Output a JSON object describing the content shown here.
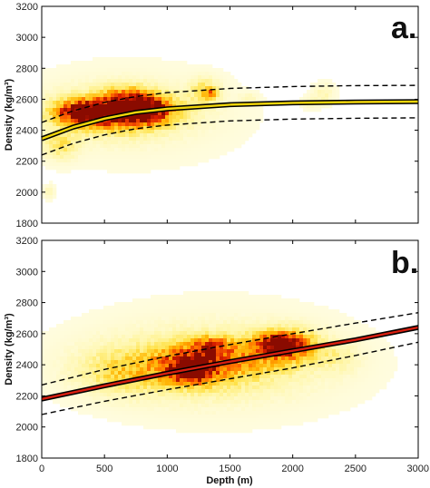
{
  "colors": {
    "background": "#ffffff",
    "frame": "#000000",
    "fit_a": "#f2d60a",
    "fit_b": "#d81f10",
    "bound": "#000000",
    "density_ramp": [
      "#fffde6",
      "#fff6a8",
      "#ffe24a",
      "#ffb000",
      "#ff6a00",
      "#d81e00",
      "#8a0b00"
    ]
  },
  "chart_data": [
    {
      "id": "a",
      "type": "heatmap",
      "panel_tag": "a.",
      "xlabel": "",
      "ylabel": "Density (kg/m³)",
      "xlim": [
        0,
        3000
      ],
      "ylim": [
        1800,
        3200
      ],
      "x_ticks": [],
      "y_ticks": [
        "1800",
        "2000",
        "2200",
        "2400",
        "2600",
        "2800",
        "3000",
        "3200"
      ],
      "grid": false,
      "series": [
        {
          "role": "fit",
          "color": "#f2d60a",
          "style": "solid",
          "points": [
            [
              0,
              2345
            ],
            [
              250,
              2420
            ],
            [
              500,
              2475
            ],
            [
              750,
              2515
            ],
            [
              1000,
              2538
            ],
            [
              1500,
              2565
            ],
            [
              2000,
              2577
            ],
            [
              2500,
              2582
            ],
            [
              3000,
              2585
            ]
          ]
        },
        {
          "role": "upper-bound",
          "style": "dashed",
          "points": [
            [
              0,
              2450
            ],
            [
              250,
              2525
            ],
            [
              500,
              2580
            ],
            [
              750,
              2618
            ],
            [
              1000,
              2643
            ],
            [
              1500,
              2670
            ],
            [
              2000,
              2682
            ],
            [
              2500,
              2688
            ],
            [
              3000,
              2690
            ]
          ]
        },
        {
          "role": "lower-bound",
          "style": "dashed",
          "points": [
            [
              0,
              2240
            ],
            [
              250,
              2315
            ],
            [
              500,
              2370
            ],
            [
              750,
              2410
            ],
            [
              1000,
              2433
            ],
            [
              1500,
              2460
            ],
            [
              2000,
              2472
            ],
            [
              2500,
              2477
            ],
            [
              3000,
              2480
            ]
          ]
        }
      ],
      "density_clusters": [
        {
          "x": 700,
          "y": 2500,
          "sx": 700,
          "sy": 250,
          "level": 0.06
        },
        {
          "x": 600,
          "y": 2510,
          "sx": 330,
          "sy": 95,
          "level": 0.42
        },
        {
          "x": 560,
          "y": 2520,
          "sx": 240,
          "sy": 60,
          "level": 0.7
        },
        {
          "x": 300,
          "y": 2510,
          "sx": 120,
          "sy": 45,
          "level": 0.62
        },
        {
          "x": 820,
          "y": 2530,
          "sx": 150,
          "sy": 55,
          "level": 0.72
        },
        {
          "x": 700,
          "y": 2600,
          "sx": 140,
          "sy": 60,
          "level": 0.38
        },
        {
          "x": 1300,
          "y": 2650,
          "sx": 80,
          "sy": 55,
          "level": 0.3
        },
        {
          "x": 1350,
          "y": 2635,
          "sx": 35,
          "sy": 20,
          "level": 0.45
        },
        {
          "x": 150,
          "y": 2300,
          "sx": 90,
          "sy": 60,
          "level": 0.25
        },
        {
          "x": 60,
          "y": 2000,
          "sx": 30,
          "sy": 30,
          "level": 0.12
        },
        {
          "x": 2250,
          "y": 2640,
          "sx": 60,
          "sy": 45,
          "level": 0.12
        },
        {
          "x": 1650,
          "y": 2610,
          "sx": 50,
          "sy": 20,
          "level": 0.1
        },
        {
          "x": 2150,
          "y": 2580,
          "sx": 60,
          "sy": 30,
          "level": 0.08
        }
      ]
    },
    {
      "id": "b",
      "type": "heatmap",
      "panel_tag": "b.",
      "xlabel": "Depth (m)",
      "ylabel": "Density (kg/m³)",
      "xlim": [
        0,
        3000
      ],
      "ylim": [
        1800,
        3200
      ],
      "x_ticks": [
        "0",
        "500",
        "1000",
        "1500",
        "2000",
        "2500",
        "3000"
      ],
      "y_ticks": [
        "1800",
        "2000",
        "2200",
        "2400",
        "2600",
        "2800",
        "3000",
        "3200"
      ],
      "grid": false,
      "series": [
        {
          "role": "fit",
          "color": "#d81f10",
          "style": "solid",
          "points": [
            [
              0,
              2180
            ],
            [
              500,
              2265
            ],
            [
              1000,
              2345
            ],
            [
              1500,
              2420
            ],
            [
              2000,
              2490
            ],
            [
              2500,
              2560
            ],
            [
              3000,
              2640
            ]
          ]
        },
        {
          "role": "upper-bound",
          "style": "dashed",
          "points": [
            [
              0,
              2270
            ],
            [
              500,
              2370
            ],
            [
              1000,
              2455
            ],
            [
              1500,
              2530
            ],
            [
              2000,
              2600
            ],
            [
              2500,
              2668
            ],
            [
              3000,
              2735
            ]
          ]
        },
        {
          "role": "lower-bound",
          "style": "dashed",
          "points": [
            [
              0,
              2080
            ],
            [
              500,
              2165
            ],
            [
              1000,
              2240
            ],
            [
              1500,
              2310
            ],
            [
              2000,
              2380
            ],
            [
              2500,
              2460
            ],
            [
              3000,
              2545
            ]
          ]
        }
      ],
      "density_clusters": [
        {
          "x": 1400,
          "y": 2420,
          "sx": 900,
          "sy": 300,
          "level": 0.06
        },
        {
          "x": 1250,
          "y": 2400,
          "sx": 520,
          "sy": 130,
          "level": 0.3
        },
        {
          "x": 1200,
          "y": 2400,
          "sx": 180,
          "sy": 80,
          "level": 0.65
        },
        {
          "x": 1180,
          "y": 2360,
          "sx": 80,
          "sy": 45,
          "level": 0.8
        },
        {
          "x": 1350,
          "y": 2520,
          "sx": 90,
          "sy": 40,
          "level": 0.5
        },
        {
          "x": 1950,
          "y": 2520,
          "sx": 160,
          "sy": 70,
          "level": 0.72
        },
        {
          "x": 1900,
          "y": 2540,
          "sx": 80,
          "sy": 35,
          "level": 0.85
        },
        {
          "x": 650,
          "y": 2350,
          "sx": 220,
          "sy": 90,
          "level": 0.22
        },
        {
          "x": 1600,
          "y": 2460,
          "sx": 220,
          "sy": 90,
          "level": 0.22
        },
        {
          "x": 2350,
          "y": 2450,
          "sx": 120,
          "sy": 70,
          "level": 0.12
        }
      ]
    }
  ]
}
